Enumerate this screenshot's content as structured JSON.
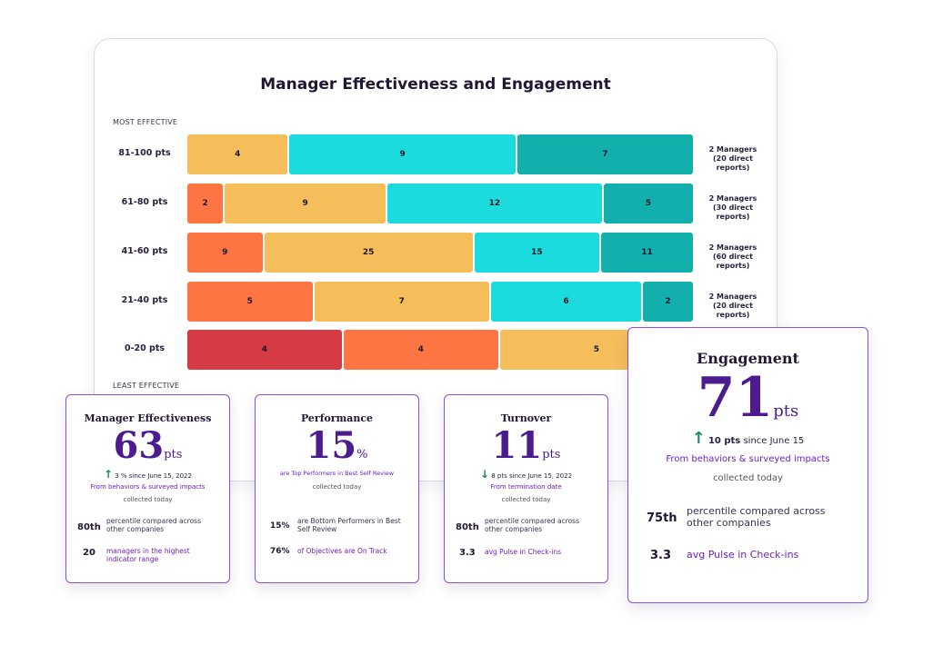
{
  "chart_data": {
    "type": "bar",
    "stacked": true,
    "orientation": "horizontal",
    "title": "Manager Effectiveness and Engagement",
    "top_caption": "MOST EFFECTIVE",
    "bottom_caption": "LEAST EFFECTIVE",
    "categories": [
      "81-100 pts",
      "61-80 pts",
      "41-60 pts",
      "21-40 pts",
      "0-20 pts"
    ],
    "series": [
      {
        "color": "#d63a44",
        "values": [
          0,
          0,
          0,
          0,
          4
        ]
      },
      {
        "color": "#ff7443",
        "values": [
          0,
          2,
          9,
          5,
          4
        ]
      },
      {
        "color": "#f6be5a",
        "values": [
          4,
          9,
          25,
          7,
          5
        ]
      },
      {
        "color": "#1cdbdc",
        "values": [
          9,
          12,
          15,
          6,
          0
        ]
      },
      {
        "color": "#13afad",
        "values": [
          7,
          5,
          11,
          2,
          0
        ]
      }
    ],
    "row_notes": [
      [
        "2 Managers",
        "(20 direct reports)"
      ],
      [
        "2 Managers",
        "(30 direct reports)"
      ],
      [
        "2 Managers",
        "(60 direct reports)"
      ],
      [
        "2 Managers",
        "(20 direct reports)"
      ],
      [
        "",
        ""
      ]
    ]
  },
  "cards": {
    "manager": {
      "title": "Manager Effectiveness",
      "value": "63",
      "unit": "pts",
      "change": "3 %",
      "since": "since June 15, 2022",
      "source": "From behaviors & surveyed impacts",
      "collected": "collected today",
      "stats": [
        {
          "value": "80th",
          "text": "percentile compared across other companies"
        },
        {
          "value": "20",
          "text": "managers in the highest indicator range"
        }
      ]
    },
    "performance": {
      "title": "Performance",
      "value": "15",
      "unit": "%",
      "source": "are Top Performers in Best Self Review",
      "collected": "collected today",
      "stats": [
        {
          "value": "15%",
          "text": "are Bottom Performers in Best Self Review"
        },
        {
          "value": "76%",
          "text": "of Objectives are On Track"
        }
      ]
    },
    "turnover": {
      "title": "Turnover",
      "value": "11",
      "unit": "pts",
      "change": "8 pts",
      "since": "since June 15, 2022",
      "source": "From termination date",
      "collected": "collected today",
      "stats": [
        {
          "value": "80th",
          "text": "percentile compared across other companies"
        },
        {
          "value": "3.3",
          "text": "avg Pulse in Check-ins"
        }
      ]
    },
    "engagement": {
      "title": "Engagement",
      "value": "71",
      "unit": "pts",
      "change": "10 pts",
      "since": "since June 15",
      "source": "From behaviors & surveyed impacts",
      "collected": "collected today",
      "stats": [
        {
          "value": "75th",
          "text": "percentile compared across other companies"
        },
        {
          "value": "3.3",
          "text": "avg Pulse in Check-ins"
        }
      ]
    }
  }
}
